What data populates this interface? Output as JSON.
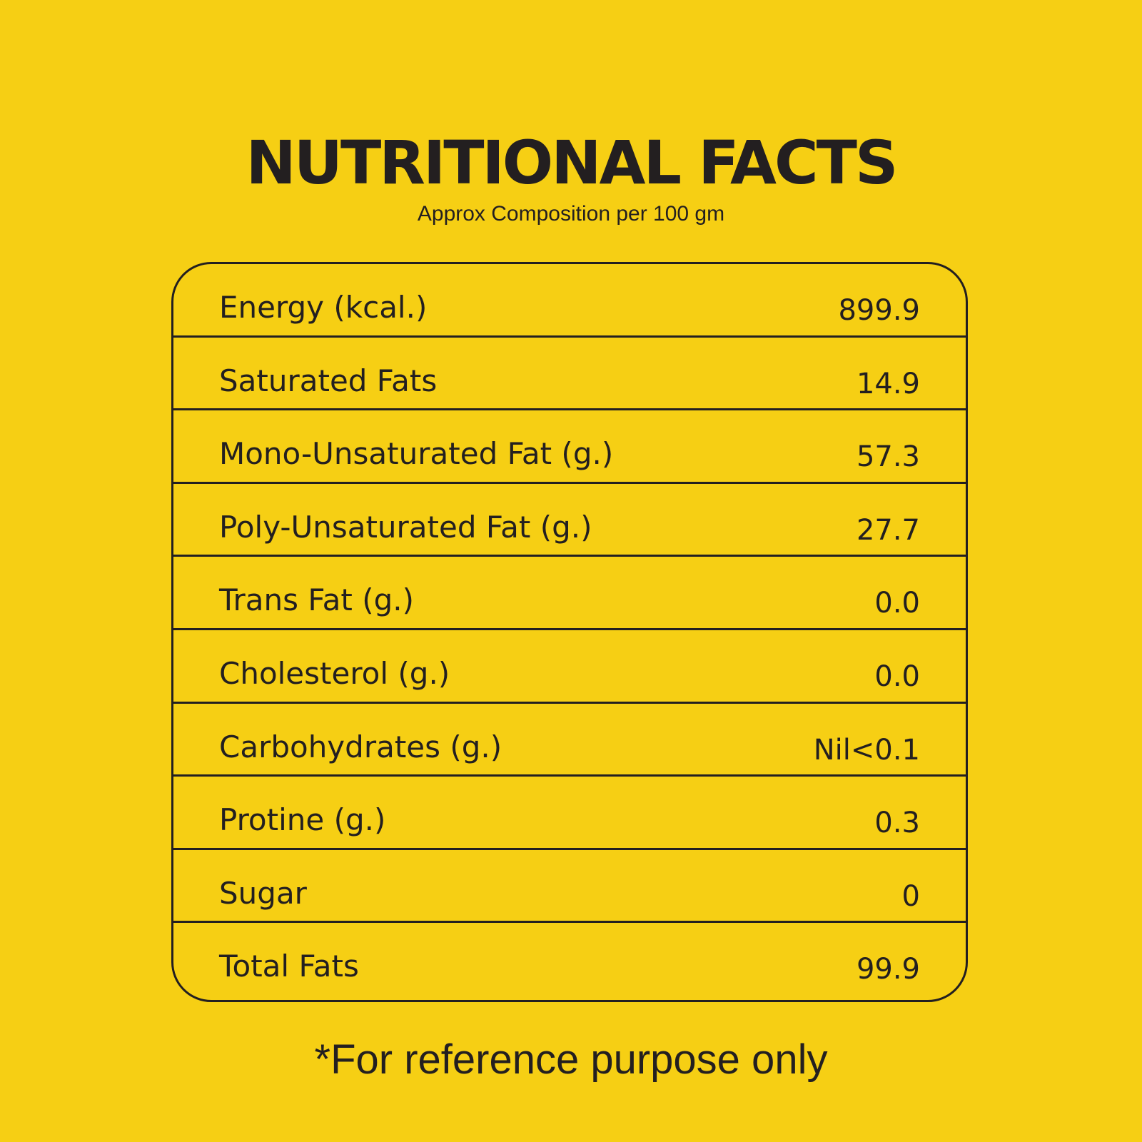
{
  "header": {
    "title": "NUTRITIONAL FACTS",
    "subtitle": "Approx Composition per 100 gm"
  },
  "table": {
    "rows": [
      {
        "label": "Energy (kcal.)",
        "value": "899.9"
      },
      {
        "label": "Saturated Fats",
        "value": "14.9"
      },
      {
        "label": "Mono-Unsaturated Fat (g.)",
        "value": "57.3"
      },
      {
        "label": "Poly-Unsaturated Fat (g.)",
        "value": "27.7"
      },
      {
        "label": "Trans Fat (g.)",
        "value": "0.0"
      },
      {
        "label": "Cholesterol (g.)",
        "value": "0.0"
      },
      {
        "label": "Carbohydrates (g.)",
        "value": "Nil<0.1"
      },
      {
        "label": "Protine (g.)",
        "value": "0.3"
      },
      {
        "label": "Sugar",
        "value": "0"
      },
      {
        "label": "Total Fats",
        "value": "99.9"
      }
    ]
  },
  "footer": {
    "note": "*For reference purpose only"
  },
  "colors": {
    "background": "#f6cf14",
    "text": "#231f20"
  }
}
